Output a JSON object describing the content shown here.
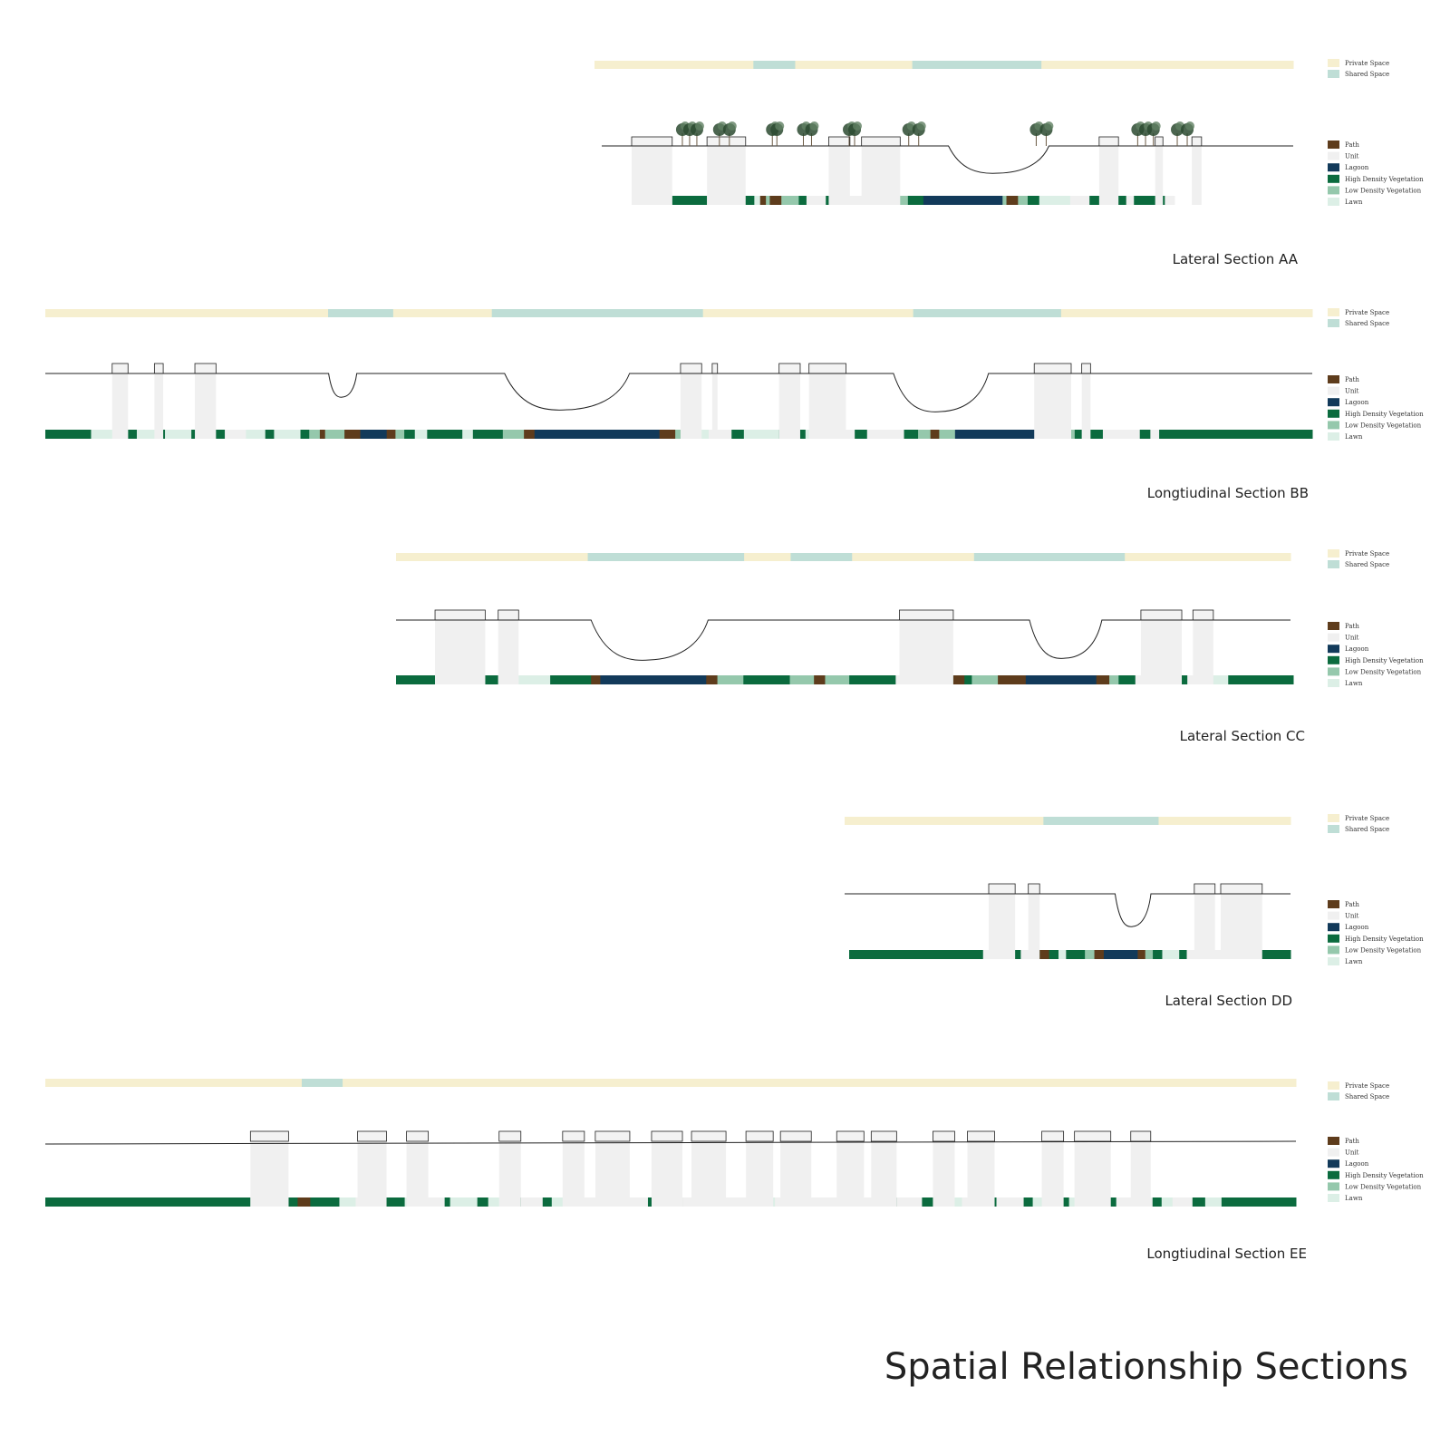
{
  "title": "Spatial Relationship Sections",
  "colors": {
    "private": "#f6efcf",
    "shared": "#bfded6",
    "path": "#5e3c1c",
    "unit": "#f0f0f0",
    "lagoon": "#123a5a",
    "high_veg": "#0b6b3e",
    "low_veg": "#95c8ac",
    "lawn": "#dcefe6",
    "tree_dark": "#2c4a30",
    "tree_mid": "#5f8062"
  },
  "legend": {
    "space": [
      {
        "key": "private",
        "label": "Private Space"
      },
      {
        "key": "shared",
        "label": "Shared Space"
      }
    ],
    "landcover": [
      {
        "key": "path",
        "label": "Path"
      },
      {
        "key": "unit",
        "label": "Unit"
      },
      {
        "key": "lagoon",
        "label": "Lagoon"
      },
      {
        "key": "high_veg",
        "label": "High Density Vegetation"
      },
      {
        "key": "low_veg",
        "label": "Low Density Vegetation"
      },
      {
        "key": "lawn",
        "label": "Lawn"
      }
    ]
  },
  "sections": [
    {
      "id": "AA",
      "label": "Lateral Section AA",
      "space_bar": [
        [
          "private",
          171
        ],
        [
          "shared",
          45
        ],
        [
          "private",
          126
        ],
        [
          "shared",
          139
        ],
        [
          "private",
          271
        ]
      ],
      "landcover": [
        [
          "unit",
          42
        ],
        [
          "high_veg",
          36
        ],
        [
          "unit",
          39
        ],
        [
          "high_veg",
          10
        ],
        [
          "lawn",
          6
        ],
        [
          "path",
          6
        ],
        [
          "low_veg",
          4
        ],
        [
          "path",
          12
        ],
        [
          "low_veg",
          18
        ],
        [
          "high_veg",
          8
        ],
        [
          "unit",
          20
        ],
        [
          "high_veg",
          11
        ],
        [
          "unit",
          40
        ],
        [
          "high_veg",
          24
        ],
        [
          "low_veg",
          10
        ],
        [
          "high_veg",
          16
        ],
        [
          "lagoon",
          82
        ],
        [
          "low_veg",
          4
        ],
        [
          "path",
          12
        ],
        [
          "low_veg",
          10
        ],
        [
          "high_veg",
          12
        ],
        [
          "lawn",
          32
        ],
        [
          "unit",
          20
        ],
        [
          "high_veg",
          38
        ],
        [
          "unit",
          8
        ],
        [
          "high_veg",
          32
        ],
        [
          "unit",
          10
        ]
      ],
      "units": [
        [
          0,
          42
        ],
        [
          78,
          40
        ],
        [
          204,
          22
        ],
        [
          238,
          40
        ],
        [
          484,
          20
        ],
        [
          542,
          8
        ],
        [
          580,
          10
        ]
      ],
      "depressions": [
        [
          328,
          432,
          30
        ]
      ],
      "trees": [
        [
          60,
          24
        ],
        [
          96,
          22
        ],
        [
          148,
          10
        ],
        [
          182,
          18
        ],
        [
          228,
          12
        ],
        [
          292,
          22
        ],
        [
          424,
          22
        ],
        [
          532,
          26
        ],
        [
          570,
          22
        ]
      ],
      "has_trees": true
    },
    {
      "id": "BB",
      "label": "Longtiudinal Section BB",
      "space_bar": [
        [
          "private",
          304
        ],
        [
          "shared",
          70
        ],
        [
          "private",
          106
        ],
        [
          "shared",
          227
        ],
        [
          "private",
          226
        ],
        [
          "shared",
          159
        ],
        [
          "private",
          270
        ]
      ],
      "landcover": [
        [
          "high_veg",
          52
        ],
        [
          "lawn",
          42
        ],
        [
          "high_veg",
          10
        ],
        [
          "lawn",
          22
        ],
        [
          "high_veg",
          10
        ],
        [
          "lawn",
          30
        ],
        [
          "high_veg",
          38
        ],
        [
          "unit",
          24
        ],
        [
          "lawn",
          22
        ],
        [
          "high_veg",
          10
        ],
        [
          "lawn",
          30
        ],
        [
          "high_veg",
          10
        ],
        [
          "low_veg",
          12
        ],
        [
          "path",
          6
        ],
        [
          "low_veg",
          22
        ],
        [
          "path",
          18
        ],
        [
          "lagoon",
          30
        ],
        [
          "path",
          10
        ],
        [
          "low_veg",
          10
        ],
        [
          "high_veg",
          12
        ],
        [
          "lawn",
          14
        ],
        [
          "high_veg",
          40
        ],
        [
          "lawn",
          12
        ],
        [
          "high_veg",
          34
        ],
        [
          "low_veg",
          24
        ],
        [
          "path",
          12
        ],
        [
          "lagoon",
          142
        ],
        [
          "path",
          18
        ],
        [
          "low_veg",
          14
        ],
        [
          "path",
          14
        ],
        [
          "lawn",
          10
        ],
        [
          "unit",
          26
        ],
        [
          "high_veg",
          14
        ],
        [
          "lawn",
          40
        ],
        [
          "high_veg",
          30
        ],
        [
          "lawn",
          32
        ],
        [
          "unit",
          24
        ],
        [
          "high_veg",
          14
        ],
        [
          "unit",
          42
        ],
        [
          "high_veg",
          16
        ],
        [
          "low_veg",
          14
        ],
        [
          "path",
          10
        ],
        [
          "low_veg",
          18
        ],
        [
          "lagoon",
          110
        ],
        [
          "path",
          10
        ],
        [
          "low_veg",
          16
        ],
        [
          "high_veg",
          32
        ],
        [
          "unit",
          42
        ],
        [
          "high_veg",
          12
        ],
        [
          "unit",
          10
        ],
        [
          "high_veg",
          174
        ]
      ],
      "units": [
        [
          76,
          18
        ],
        [
          124,
          10
        ],
        [
          170,
          24
        ],
        [
          722,
          24
        ],
        [
          758,
          6
        ],
        [
          834,
          24
        ],
        [
          868,
          42
        ],
        [
          1124,
          42
        ],
        [
          1178,
          10
        ]
      ],
      "depressions": [
        [
          322,
          354,
          26
        ],
        [
          522,
          664,
          40
        ],
        [
          964,
          1072,
          42
        ]
      ],
      "trees": [],
      "has_trees": false
    },
    {
      "id": "CC",
      "label": "Lateral Section CC",
      "space_bar": [
        [
          "private",
          206
        ],
        [
          "shared",
          168
        ],
        [
          "private",
          50
        ],
        [
          "shared",
          66
        ],
        [
          "private",
          131
        ],
        [
          "shared",
          162
        ],
        [
          "private",
          178
        ]
      ],
      "landcover": [
        [
          "high_veg",
          42
        ],
        [
          "unit",
          54
        ],
        [
          "high_veg",
          14
        ],
        [
          "unit",
          22
        ],
        [
          "lawn",
          34
        ],
        [
          "high_veg",
          44
        ],
        [
          "path",
          10
        ],
        [
          "lagoon",
          114
        ],
        [
          "path",
          12
        ],
        [
          "low_veg",
          28
        ],
        [
          "high_veg",
          50
        ],
        [
          "low_veg",
          26
        ],
        [
          "path",
          12
        ],
        [
          "low_veg",
          26
        ],
        [
          "high_veg",
          50
        ],
        [
          "unit",
          58
        ],
        [
          "high_veg",
          4
        ],
        [
          "path",
          12
        ],
        [
          "high_veg",
          8
        ],
        [
          "low_veg",
          28
        ],
        [
          "path",
          30
        ],
        [
          "lagoon",
          76
        ],
        [
          "path",
          14
        ],
        [
          "low_veg",
          10
        ],
        [
          "high_veg",
          18
        ],
        [
          "unit",
          44
        ],
        [
          "high_veg",
          12
        ],
        [
          "unit",
          22
        ],
        [
          "lawn",
          22
        ],
        [
          "high_veg",
          70
        ]
      ],
      "units": [
        [
          42,
          54
        ],
        [
          110,
          22
        ],
        [
          542,
          58
        ],
        [
          802,
          44
        ],
        [
          858,
          22
        ]
      ],
      "depressions": [
        [
          210,
          336,
          44
        ],
        [
          682,
          760,
          42
        ]
      ],
      "trees": [],
      "has_trees": false
    },
    {
      "id": "DD",
      "label": "Lateral Section DD",
      "space_bar": [
        [
          "private",
          214
        ],
        [
          "shared",
          124
        ],
        [
          "private",
          142
        ]
      ],
      "landcover": [
        [
          "high_veg",
          142
        ],
        [
          "unit",
          26
        ],
        [
          "high_veg",
          14
        ],
        [
          "unit",
          10
        ],
        [
          "high_veg",
          10
        ],
        [
          "path",
          10
        ],
        [
          "high_veg",
          10
        ],
        [
          "lawn",
          8
        ],
        [
          "high_veg",
          20
        ],
        [
          "low_veg",
          10
        ],
        [
          "path",
          10
        ],
        [
          "lagoon",
          36
        ],
        [
          "path",
          8
        ],
        [
          "low_veg",
          8
        ],
        [
          "high_veg",
          10
        ],
        [
          "lawn",
          18
        ],
        [
          "high_veg",
          8
        ],
        [
          "unit",
          22
        ],
        [
          "high_veg",
          6
        ],
        [
          "unit",
          42
        ],
        [
          "high_veg",
          40
        ]
      ],
      "units": [
        [
          148,
          28
        ],
        [
          190,
          12
        ],
        [
          366,
          22
        ],
        [
          394,
          44
        ]
      ],
      "depressions": [
        [
          282,
          320,
          36
        ]
      ],
      "trees": [],
      "has_trees": false
    },
    {
      "id": "EE",
      "label": "Longtiudinal Section EE",
      "space_bar": [
        [
          "private",
          276
        ],
        [
          "shared",
          44
        ],
        [
          "private",
          1026
        ]
      ],
      "landcover": [
        [
          "high_veg",
          226
        ],
        [
          "unit",
          42
        ],
        [
          "high_veg",
          10
        ],
        [
          "path",
          14
        ],
        [
          "high_veg",
          32
        ],
        [
          "lawn",
          18
        ],
        [
          "unit",
          32
        ],
        [
          "high_veg",
          22
        ],
        [
          "lawn",
          20
        ],
        [
          "unit",
          24
        ],
        [
          "high_veg",
          6
        ],
        [
          "lawn",
          30
        ],
        [
          "high_veg",
          12
        ],
        [
          "lawn",
          22
        ],
        [
          "high_veg",
          14
        ],
        [
          "unit",
          24
        ],
        [
          "high_veg",
          10
        ],
        [
          "lawn",
          14
        ],
        [
          "high_veg",
          12
        ],
        [
          "lawn",
          8
        ],
        [
          "unit",
          24
        ],
        [
          "high_veg",
          10
        ],
        [
          "unit",
          38
        ],
        [
          "high_veg",
          12
        ],
        [
          "lawn",
          14
        ],
        [
          "high_veg",
          12
        ],
        [
          "unit",
          34
        ],
        [
          "high_veg",
          10
        ],
        [
          "unit",
          38
        ],
        [
          "high_veg",
          6
        ],
        [
          "lawn",
          14
        ],
        [
          "unit",
          30
        ],
        [
          "high_veg",
          8
        ],
        [
          "unit",
          34
        ],
        [
          "high_veg",
          6
        ],
        [
          "lawn",
          14
        ],
        [
          "unit",
          30
        ],
        [
          "high_veg",
          12
        ],
        [
          "unit",
          28
        ],
        [
          "high_veg",
          14
        ],
        [
          "lawn",
          30
        ],
        [
          "unit",
          24
        ],
        [
          "high_veg",
          14
        ],
        [
          "unit",
          30
        ],
        [
          "high_veg",
          10
        ],
        [
          "lawn",
          16
        ],
        [
          "high_veg",
          24
        ],
        [
          "lawn",
          14
        ],
        [
          "unit",
          24
        ],
        [
          "high_veg",
          14
        ],
        [
          "unit",
          40
        ],
        [
          "high_veg",
          10
        ],
        [
          "lawn",
          12
        ],
        [
          "unit",
          22
        ],
        [
          "high_veg",
          14
        ],
        [
          "lawn",
          18
        ],
        [
          "high_veg",
          82
        ]
      ],
      "units": [
        [
          226,
          42
        ],
        [
          344,
          32
        ],
        [
          398,
          24
        ],
        [
          500,
          24
        ],
        [
          570,
          24
        ],
        [
          606,
          38
        ],
        [
          668,
          34
        ],
        [
          712,
          38
        ],
        [
          772,
          30
        ],
        [
          810,
          34
        ],
        [
          872,
          30
        ],
        [
          910,
          28
        ],
        [
          978,
          24
        ],
        [
          1016,
          30
        ],
        [
          1098,
          24
        ],
        [
          1134,
          40
        ],
        [
          1196,
          22
        ]
      ],
      "depressions": [],
      "trees": [],
      "has_trees": false
    }
  ]
}
